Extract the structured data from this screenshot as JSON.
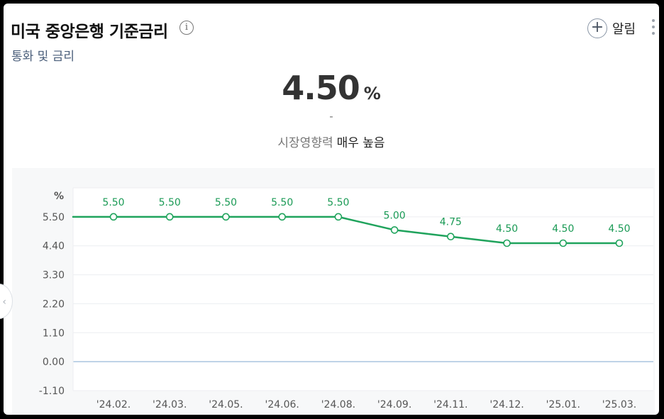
{
  "header": {
    "title": "미국 중앙은행 기준금리",
    "info_icon": "info-icon",
    "subtitle": "통화 및 금리",
    "alarm_label": "알림",
    "alarm_icon": "plus-circle-icon",
    "more_icon": "more-vertical-icon"
  },
  "summary": {
    "value": "4.50",
    "unit": "%",
    "change": "-",
    "impact_label": "시장영향력",
    "impact_value": "매우 높음"
  },
  "chart_data": {
    "type": "line",
    "ylabel": "%",
    "yticks": [
      "5.50",
      "4.40",
      "3.30",
      "2.20",
      "1.10",
      "0.00",
      "-1.10"
    ],
    "ylim": [
      -1.1,
      6.6
    ],
    "categories": [
      "'24.02.",
      "'24.03.",
      "'24.05.",
      "'24.06.",
      "'24.08.",
      "'24.09.",
      "'24.11.",
      "'24.12.",
      "'25.01.",
      "'25.03."
    ],
    "values": [
      5.5,
      5.5,
      5.5,
      5.5,
      5.5,
      5.0,
      4.75,
      4.5,
      4.5,
      4.5
    ],
    "value_labels": [
      "5.50",
      "5.50",
      "5.50",
      "5.50",
      "5.50",
      "5.00",
      "4.75",
      "4.50",
      "4.50",
      "4.50"
    ],
    "grid": true,
    "line_color": "#1fa35c",
    "zero_line_color": "#a9c4df"
  }
}
